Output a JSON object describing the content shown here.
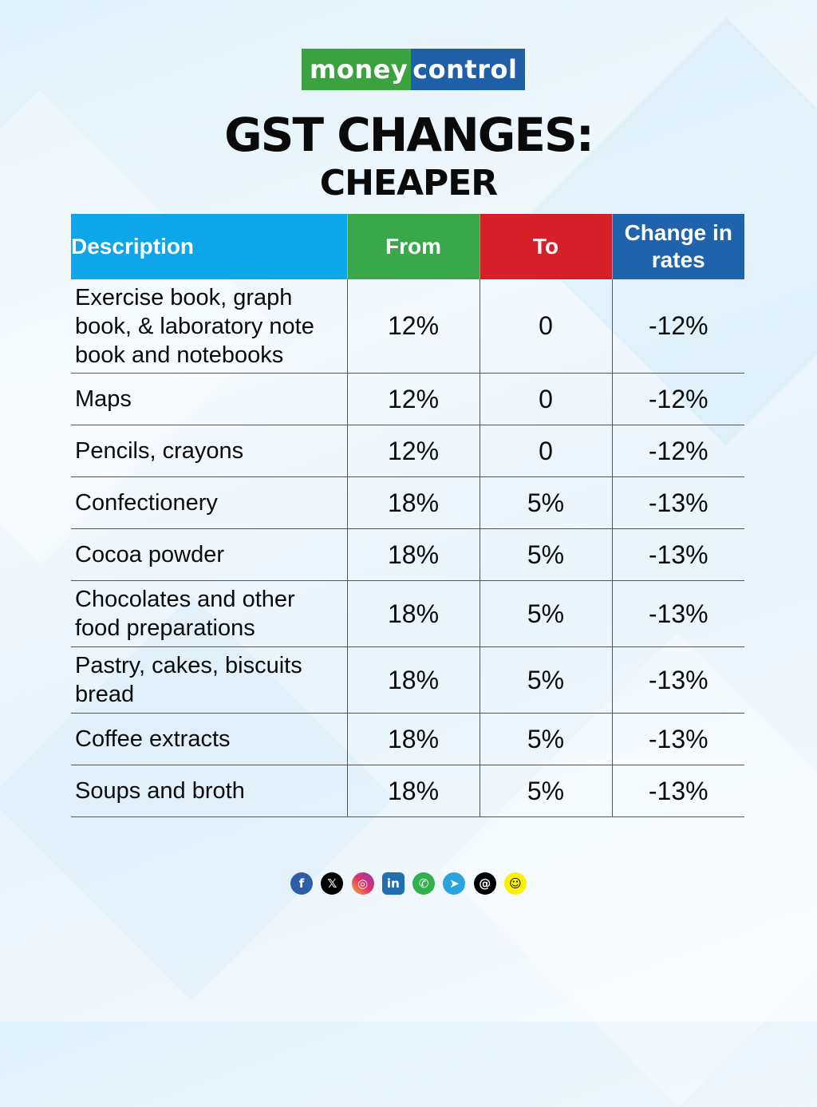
{
  "logo": {
    "part1": "money",
    "part2": "control"
  },
  "title": "GST CHANGES:",
  "subtitle": "CHEAPER",
  "table": {
    "headers": {
      "description": "Description",
      "from": "From",
      "to": "To",
      "change_line1": "Change in",
      "change_line2": "rates"
    },
    "rows": [
      {
        "desc_lines": [
          "Exercise book, graph",
          "book, & laboratory note",
          "book and notebooks"
        ],
        "from": "12%",
        "to": "0",
        "change": "-12%"
      },
      {
        "desc_lines": [
          "Maps"
        ],
        "from": "12%",
        "to": "0",
        "change": "-12%"
      },
      {
        "desc_lines": [
          "Pencils, crayons"
        ],
        "from": "12%",
        "to": "0",
        "change": "-12%"
      },
      {
        "desc_lines": [
          "Confectionery"
        ],
        "from": "18%",
        "to": "5%",
        "change": "-13%"
      },
      {
        "desc_lines": [
          "Cocoa powder"
        ],
        "from": "18%",
        "to": "5%",
        "change": "-13%"
      },
      {
        "desc_lines": [
          "Chocolates and other",
          "food preparations"
        ],
        "from": "18%",
        "to": "5%",
        "change": "-13%"
      },
      {
        "desc_lines": [
          "Pastry, cakes, biscuits",
          "bread"
        ],
        "from": "18%",
        "to": "5%",
        "change": "-13%"
      },
      {
        "desc_lines": [
          "Coffee extracts"
        ],
        "from": "18%",
        "to": "5%",
        "change": "-13%"
      },
      {
        "desc_lines": [
          "Soups and broth"
        ],
        "from": "18%",
        "to": "5%",
        "change": "-13%"
      }
    ],
    "colors": {
      "description_header": "#0ea6e8",
      "from_header": "#3aa84a",
      "to_header": "#d71f2a",
      "change_header": "#1f63ad"
    }
  },
  "social": {
    "icons": [
      "facebook-icon",
      "x-icon",
      "instagram-icon",
      "linkedin-icon",
      "whatsapp-icon",
      "telegram-icon",
      "threads-icon",
      "snapchat-icon"
    ],
    "glyphs": {
      "facebook": "f",
      "x": "𝕏",
      "instagram": "◎",
      "linkedin": "in",
      "whatsapp": "✆",
      "telegram": "➤",
      "threads": "@",
      "snapchat": "☺"
    }
  }
}
